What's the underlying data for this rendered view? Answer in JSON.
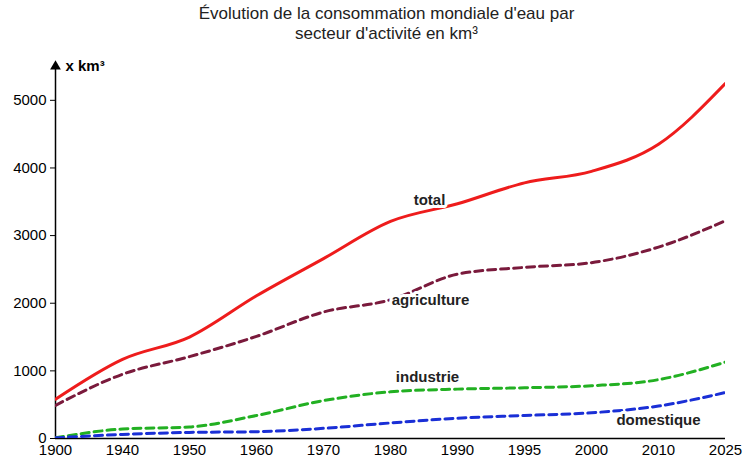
{
  "chart_data": {
    "type": "line",
    "title": "Évolution de la consommation mondiale d'eau par secteur d'activité en km³",
    "y_label": "x km³",
    "categories": [
      "1900",
      "1940",
      "1950",
      "1960",
      "1970",
      "1980",
      "1990",
      "1995",
      "2000",
      "2010",
      "2025"
    ],
    "series": [
      {
        "name": "total",
        "color": "#ee1c1c",
        "line_style": "solid",
        "values": [
          580,
          1170,
          1500,
          2110,
          2660,
          3210,
          3470,
          3780,
          3950,
          4350,
          5250
        ]
      },
      {
        "name": "agriculture",
        "color": "#7a1a3c",
        "line_style": "dashed",
        "values": [
          490,
          950,
          1210,
          1510,
          1870,
          2050,
          2430,
          2530,
          2600,
          2830,
          3220
        ]
      },
      {
        "name": "industrie",
        "color": "#22b022",
        "line_style": "dashed",
        "values": [
          10,
          140,
          170,
          340,
          560,
          690,
          730,
          750,
          780,
          870,
          1130
        ]
      },
      {
        "name": "domestique",
        "color": "#1a2fd6",
        "line_style": "dashed",
        "values": [
          10,
          60,
          90,
          100,
          150,
          230,
          300,
          340,
          380,
          480,
          680
        ]
      }
    ],
    "ylim": [
      0,
      5500
    ],
    "yticks": [
      0,
      1000,
      2000,
      3000,
      4000,
      5000
    ],
    "grid": false
  }
}
